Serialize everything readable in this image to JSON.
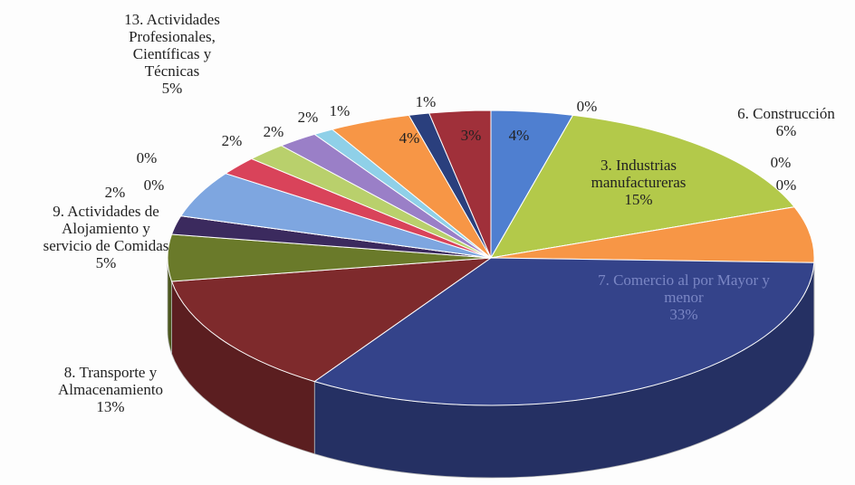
{
  "chart_data": {
    "type": "pie3d",
    "categories": [
      null,
      null,
      "3. Industrias manufactureras",
      null,
      null,
      "6. Construcción",
      "7. Comercio al por Mayor y menor",
      "8. Transporte y Almacenamiento",
      "9. Actividades de Alojamiento y servicio de Comidas",
      null,
      null,
      null,
      "13. Actividades Profesionales, Científicas y Técnicas",
      null,
      null,
      null,
      null,
      null,
      null,
      null
    ],
    "values": [
      4,
      0,
      15,
      0,
      0,
      6,
      33,
      13,
      5,
      2,
      0,
      0,
      5,
      2,
      2,
      2,
      1,
      4,
      1,
      3
    ],
    "value_labels": [
      "4%",
      "0%",
      "15%",
      "0%",
      "0%",
      "6%",
      "33%",
      "13%",
      "5%",
      "2%",
      "0%",
      "0%",
      "5%",
      "2%",
      "2%",
      "2%",
      "1%",
      "4%",
      "1%",
      "3%"
    ],
    "colors": [
      "#4f7fd0",
      "#c0504d",
      "#b3c94a",
      "#8064a2",
      "#4bacc6",
      "#f79646",
      "#34438a",
      "#7e2a2c",
      "#6a7a2a",
      "#3b2a5e",
      "#2d8ba8",
      "#c8641e",
      "#7ea6e0",
      "#d9435a",
      "#b9d06c",
      "#9a7fc7",
      "#8fd0e8",
      "#f79646",
      "#2a3f7d",
      "#a0303a"
    ]
  }
}
